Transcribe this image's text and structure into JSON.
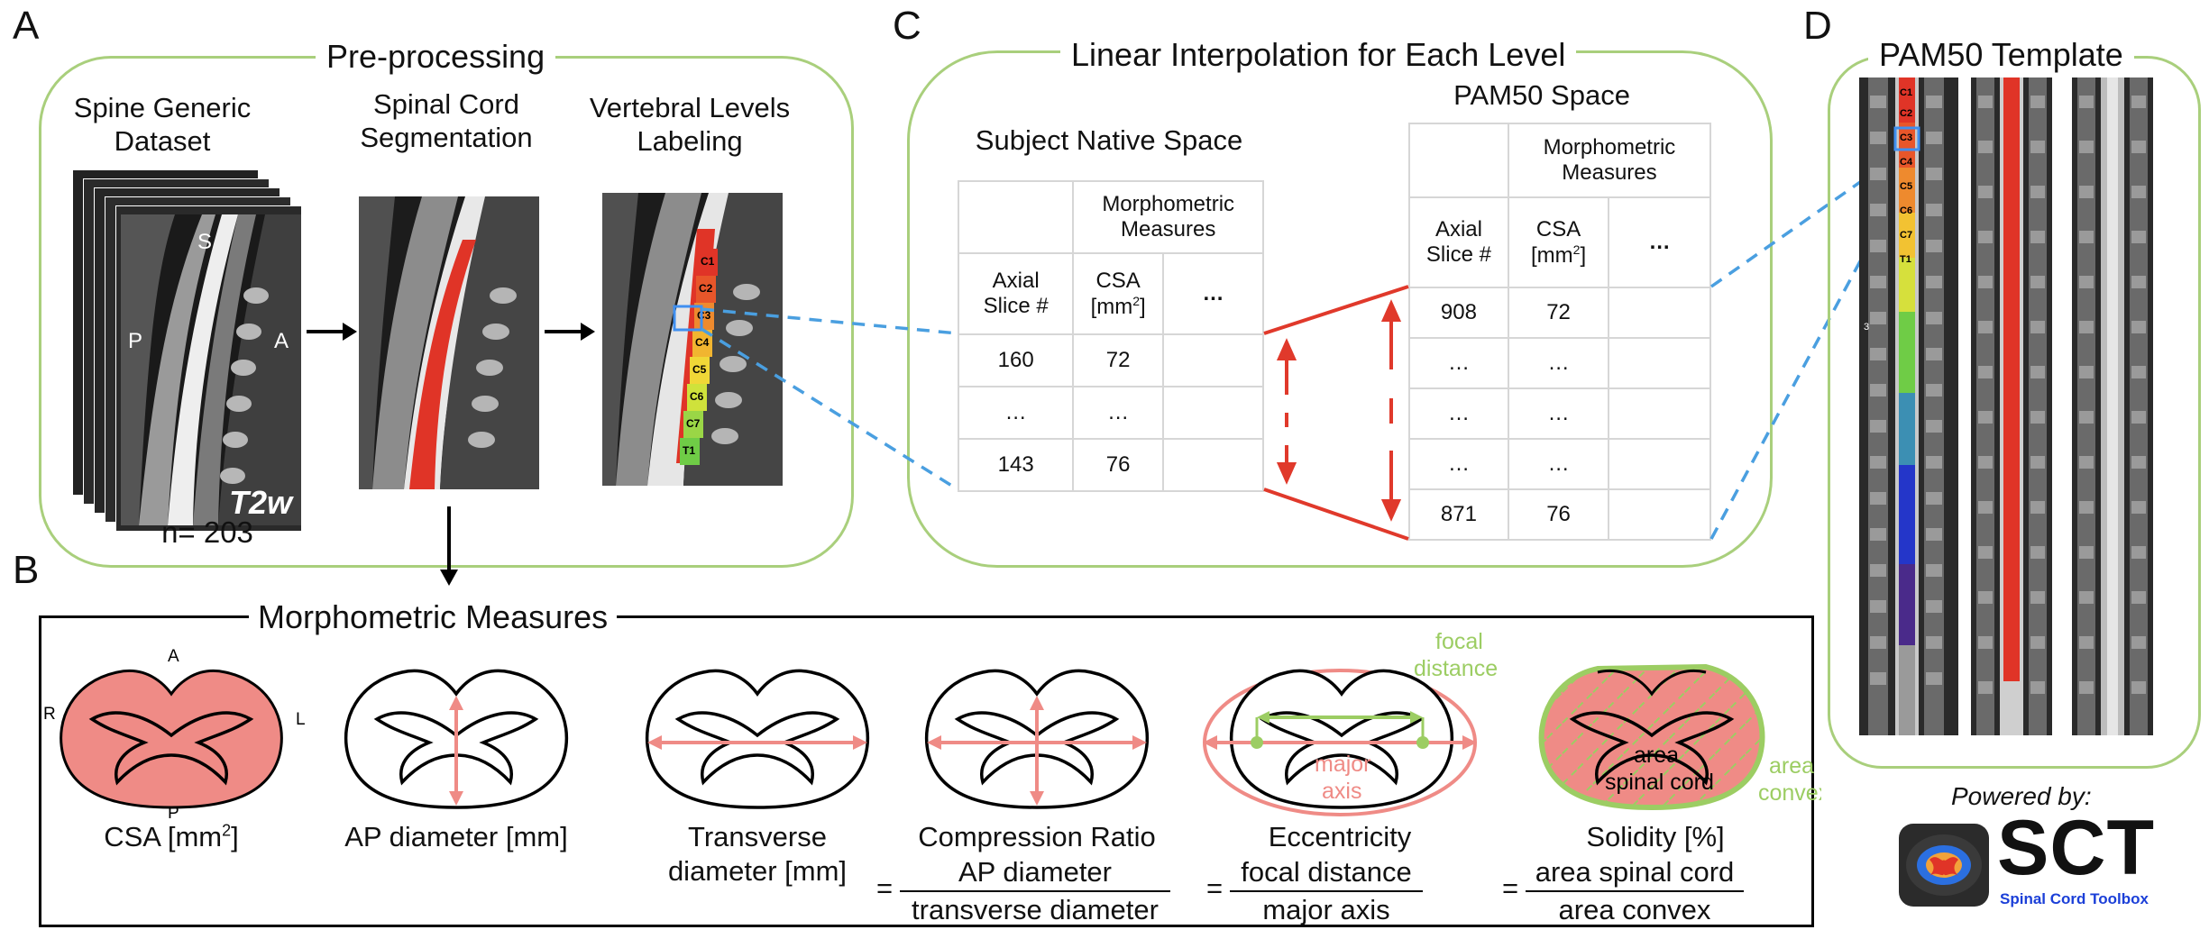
{
  "panels": {
    "a": "A",
    "b": "B",
    "c": "C",
    "d": "D"
  },
  "panel_a": {
    "title": "Pre-processing",
    "col1": {
      "line1": "Spine Generic",
      "line2": "Dataset"
    },
    "col2": {
      "line1": "Spinal Cord",
      "line2": "Segmentation"
    },
    "col3": {
      "line1": "Vertebral Levels",
      "line2": "Labeling"
    },
    "n_label": "n= 203",
    "mri_letters": {
      "s": "S",
      "p": "P",
      "a": "A",
      "contrast": "T2w"
    },
    "levels": [
      "C1",
      "C2",
      "C3",
      "C4",
      "C5",
      "C6",
      "C7",
      "T1"
    ]
  },
  "panel_b": {
    "title": "Morphometric Measures",
    "orient": {
      "a": "A",
      "p": "P",
      "r": "R",
      "l": "L"
    },
    "csa": {
      "label": "CSA [mm",
      "sup": "2",
      "close": "]"
    },
    "ap": {
      "label": "AP diameter [mm]"
    },
    "transverse": {
      "line1": "Transverse",
      "line2": "diameter [mm]"
    },
    "compression": {
      "line1": "Compression Ratio",
      "eq": "=",
      "num": "AP diameter",
      "den": "transverse diameter"
    },
    "eccentricity": {
      "line1": "Eccentricity",
      "eq": "=",
      "num": "focal distance",
      "den": "major axis",
      "focal1": "focal",
      "focal2": "distance",
      "major1": "major",
      "major2": "axis"
    },
    "solidity": {
      "line1": "Solidity [%]",
      "eq": "=",
      "num": "area spinal cord",
      "den": "area convex",
      "area_sc1": "area",
      "area_sc2": "spinal cord",
      "area_cv1": "area",
      "area_cv2": "convex"
    }
  },
  "panel_c": {
    "title": "Linear Interpolation for Each Level",
    "native": {
      "title": "Subject Native Space",
      "header_group": "Morphometric Measures",
      "col_slice1": "Axial",
      "col_slice2": "Slice #",
      "col_csa1": "CSA",
      "col_csa2": "[mm",
      "col_csa_sup": "2",
      "col_csa_close": "]",
      "col_more": "…",
      "rows": [
        [
          "160",
          "72"
        ],
        [
          "…",
          "…"
        ],
        [
          "143",
          "76"
        ]
      ]
    },
    "pam50": {
      "title": "PAM50 Space",
      "header_group": "Morphometric Measures",
      "col_slice1": "Axial",
      "col_slice2": "Slice #",
      "col_csa1": "CSA",
      "col_csa2": "[mm",
      "col_csa_sup": "2",
      "col_csa_close": "]",
      "col_more": "…",
      "rows": [
        [
          "908",
          "72"
        ],
        [
          "…",
          "…"
        ],
        [
          "…",
          "…"
        ],
        [
          "…",
          "…"
        ],
        [
          "871",
          "76"
        ]
      ]
    }
  },
  "panel_d": {
    "title": "PAM50 Template",
    "levels": [
      "C1",
      "C2",
      "C3",
      "C4",
      "C5",
      "C6",
      "C7",
      "T1"
    ],
    "small_mark": "3"
  },
  "sct": {
    "powered_by": "Powered by:",
    "name": "SCT",
    "subtitle": "Spinal Cord Toolbox"
  },
  "colors": {
    "green_box": "#a9cf7c",
    "red": "#e0392b",
    "salmon": "#ef8b86",
    "light_green": "#9ccd63",
    "blue_dash": "#4a9fe0",
    "sct_blue": "#1b3fd8"
  }
}
